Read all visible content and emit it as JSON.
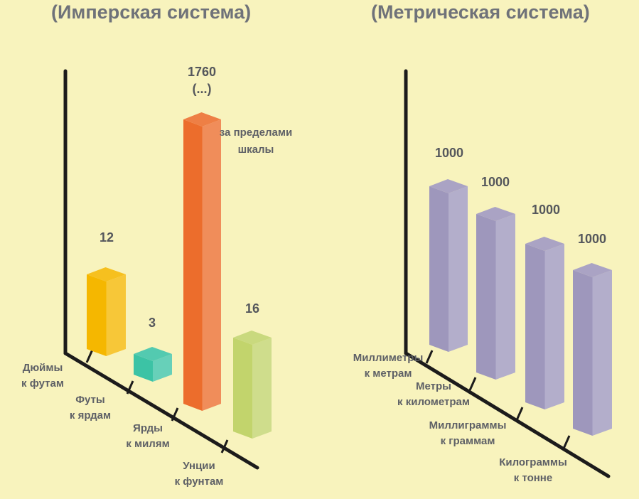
{
  "chart_data": [
    {
      "type": "bar",
      "title": "(Имперская система)",
      "categories": [
        [
          "Дюймы",
          "к футам"
        ],
        [
          "Футы",
          "к ярдам"
        ],
        [
          "Ярды",
          "к милям"
        ],
        [
          "Унции",
          "к фунтам"
        ]
      ],
      "values": [
        12,
        3,
        1760,
        16
      ],
      "value_labels": [
        [
          "12"
        ],
        [
          "3"
        ],
        [
          "1760",
          "(...)"
        ],
        [
          "16"
        ]
      ],
      "annotations": [
        {
          "category_index": 2,
          "lines": [
            "за пределами",
            "шкалы"
          ]
        }
      ],
      "colors": [
        "#f5b700",
        "#3cc3a5",
        "#ec6d2c",
        "#c2d46c"
      ]
    },
    {
      "type": "bar",
      "title": "(Метрическая система)",
      "categories": [
        [
          "Миллиметры",
          "к метрам"
        ],
        [
          "Метры",
          "к километрам"
        ],
        [
          "Миллиграммы",
          "к граммам"
        ],
        [
          "Килограммы",
          "к тонне"
        ]
      ],
      "values": [
        1000,
        1000,
        1000,
        1000
      ],
      "value_labels": [
        [
          "1000"
        ],
        [
          "1000"
        ],
        [
          "1000"
        ],
        [
          "1000"
        ]
      ],
      "annotations": [],
      "colors": [
        "#9e97bc",
        "#9e97bc",
        "#9e97bc",
        "#9e97bc"
      ]
    }
  ]
}
